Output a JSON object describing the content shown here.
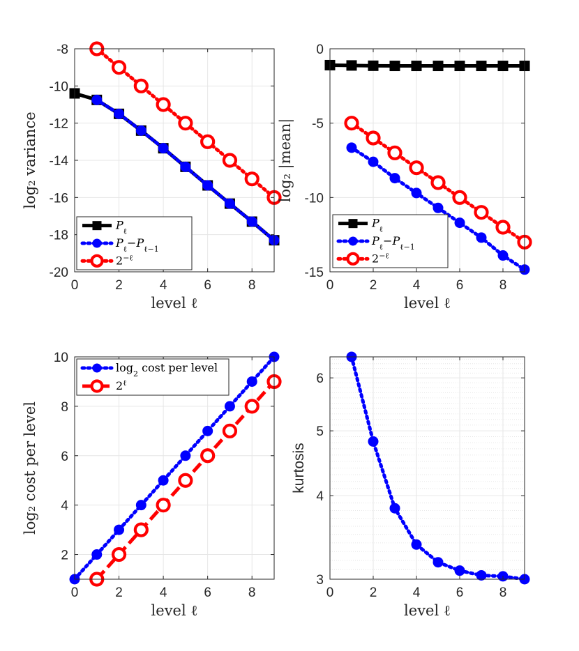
{
  "colors": {
    "black": "#000000",
    "blue": "#0000ff",
    "red": "#ff0000"
  },
  "chart_data": [
    {
      "id": "variance",
      "type": "line",
      "xlabel": "level ℓ",
      "ylabel": "log₂ variance",
      "xlim": [
        0,
        9
      ],
      "ylim": [
        -20,
        -8
      ],
      "xticks": [
        0,
        2,
        4,
        6,
        8
      ],
      "yticks": [
        -20,
        -18,
        -16,
        -14,
        -12,
        -10,
        -8
      ],
      "ytick_labels": [
        "-20",
        "-18",
        "-16",
        "-14",
        "-12",
        "-10",
        "-8"
      ],
      "grid": true,
      "legend_position": "bottom-left",
      "series": [
        {
          "name": "P_ℓ",
          "label_main": "P",
          "label_sub": "ℓ",
          "style": "solid",
          "marker": "square",
          "color": "#000000",
          "x": [
            0,
            1,
            2,
            3,
            4,
            5,
            6,
            7,
            8,
            9
          ],
          "y": [
            -10.4,
            -10.75,
            -11.5,
            -12.4,
            -13.35,
            -14.35,
            -15.35,
            -16.33,
            -17.3,
            -18.3
          ]
        },
        {
          "name": "P_ℓ−P_ℓ−1",
          "label_main": "P",
          "label_sub": "ℓ",
          "label_mid": "−P",
          "label_sub2": "ℓ−1",
          "style": "dotted",
          "marker": "circle",
          "color": "#0000ff",
          "x": [
            1,
            2,
            3,
            4,
            5,
            6,
            7,
            8,
            9
          ],
          "y": [
            -10.75,
            -11.5,
            -12.4,
            -13.35,
            -14.35,
            -15.35,
            -16.33,
            -17.3,
            -18.3
          ]
        },
        {
          "name": "2^−ℓ",
          "label_main": "2",
          "label_sup": "−ℓ",
          "style": "dotted",
          "marker": "ring",
          "color": "#ff0000",
          "x": [
            1,
            2,
            3,
            4,
            5,
            6,
            7,
            8,
            9
          ],
          "y": [
            -8,
            -9,
            -10,
            -11,
            -12,
            -13,
            -14,
            -15,
            -16
          ]
        }
      ]
    },
    {
      "id": "mean",
      "type": "line",
      "xlabel": "level ℓ",
      "ylabel": "log₂ |mean|",
      "xlim": [
        0,
        9
      ],
      "ylim": [
        -15,
        0
      ],
      "xticks": [
        0,
        2,
        4,
        6,
        8
      ],
      "yticks": [
        -15,
        -10,
        -5,
        0
      ],
      "ytick_labels": [
        "-15",
        "-10",
        "-5",
        "0"
      ],
      "grid": true,
      "legend_position": "bottom-left",
      "series": [
        {
          "name": "P_ℓ",
          "label_main": "P",
          "label_sub": "ℓ",
          "style": "solid",
          "marker": "square",
          "color": "#000000",
          "x": [
            0,
            1,
            2,
            3,
            4,
            5,
            6,
            7,
            8,
            9
          ],
          "y": [
            -1.1,
            -1.12,
            -1.14,
            -1.15,
            -1.15,
            -1.15,
            -1.15,
            -1.15,
            -1.15,
            -1.15
          ]
        },
        {
          "name": "P_ℓ−P_ℓ−1",
          "label_main": "P",
          "label_sub": "ℓ",
          "label_mid": "−P",
          "label_sub2": "ℓ−1",
          "style": "dotted",
          "marker": "circle",
          "color": "#0000ff",
          "x": [
            1,
            2,
            3,
            4,
            5,
            6,
            7,
            8,
            9
          ],
          "y": [
            -6.65,
            -7.6,
            -8.7,
            -9.7,
            -10.7,
            -11.7,
            -12.7,
            -13.9,
            -14.85
          ]
        },
        {
          "name": "2^−ℓ",
          "label_main": "2",
          "label_sup": "−ℓ",
          "style": "dotted",
          "marker": "ring",
          "color": "#ff0000",
          "x": [
            1,
            2,
            3,
            4,
            5,
            6,
            7,
            8,
            9
          ],
          "y": [
            -5,
            -6,
            -7,
            -8,
            -9,
            -10,
            -11,
            -12,
            -13
          ]
        }
      ]
    },
    {
      "id": "cost",
      "type": "line",
      "xlabel": "level ℓ",
      "ylabel": "log₂ cost per level",
      "xlim": [
        0,
        9
      ],
      "ylim": [
        1,
        10
      ],
      "xticks": [
        0,
        2,
        4,
        6,
        8
      ],
      "yticks": [
        2,
        4,
        6,
        8,
        10
      ],
      "ytick_labels": [
        "2",
        "4",
        "6",
        "8",
        "10"
      ],
      "grid": true,
      "legend_position": "top-left",
      "series": [
        {
          "name": "log₂ cost per level",
          "label_main": "log",
          "label_sub": "2",
          "label_tail": " cost per level",
          "style": "dotted",
          "marker": "circle",
          "color": "#0000ff",
          "x": [
            0,
            1,
            2,
            3,
            4,
            5,
            6,
            7,
            8,
            9
          ],
          "y": [
            1,
            2,
            3,
            4,
            5,
            6,
            7,
            8,
            9,
            10
          ]
        },
        {
          "name": "2^ℓ",
          "label_main": "2",
          "label_sup": "ℓ",
          "style": "dashed",
          "marker": "ring",
          "color": "#ff0000",
          "x": [
            1,
            2,
            3,
            4,
            5,
            6,
            7,
            8,
            9
          ],
          "y": [
            1,
            2,
            3,
            4,
            5,
            6,
            7,
            8,
            9
          ]
        }
      ]
    },
    {
      "id": "kurtosis",
      "type": "line",
      "xlabel": "level ℓ",
      "ylabel": "kurtosis",
      "ylabel_font": "sans",
      "yscale": "log",
      "xlim": [
        0,
        9
      ],
      "ylim": [
        3,
        6.45
      ],
      "xticks": [
        0,
        2,
        4,
        6,
        8
      ],
      "yticks": [
        3,
        4,
        5,
        6
      ],
      "ytick_labels": [
        "3",
        "4",
        "5",
        "6"
      ],
      "grid": true,
      "series": [
        {
          "name": "kurtosis",
          "style": "dotted",
          "marker": "circle",
          "color": "#0000ff",
          "x": [
            1,
            2,
            3,
            4,
            5,
            6,
            7,
            8,
            9
          ],
          "y": [
            6.45,
            4.82,
            3.83,
            3.38,
            3.18,
            3.09,
            3.04,
            3.03,
            3.0
          ]
        }
      ]
    }
  ]
}
